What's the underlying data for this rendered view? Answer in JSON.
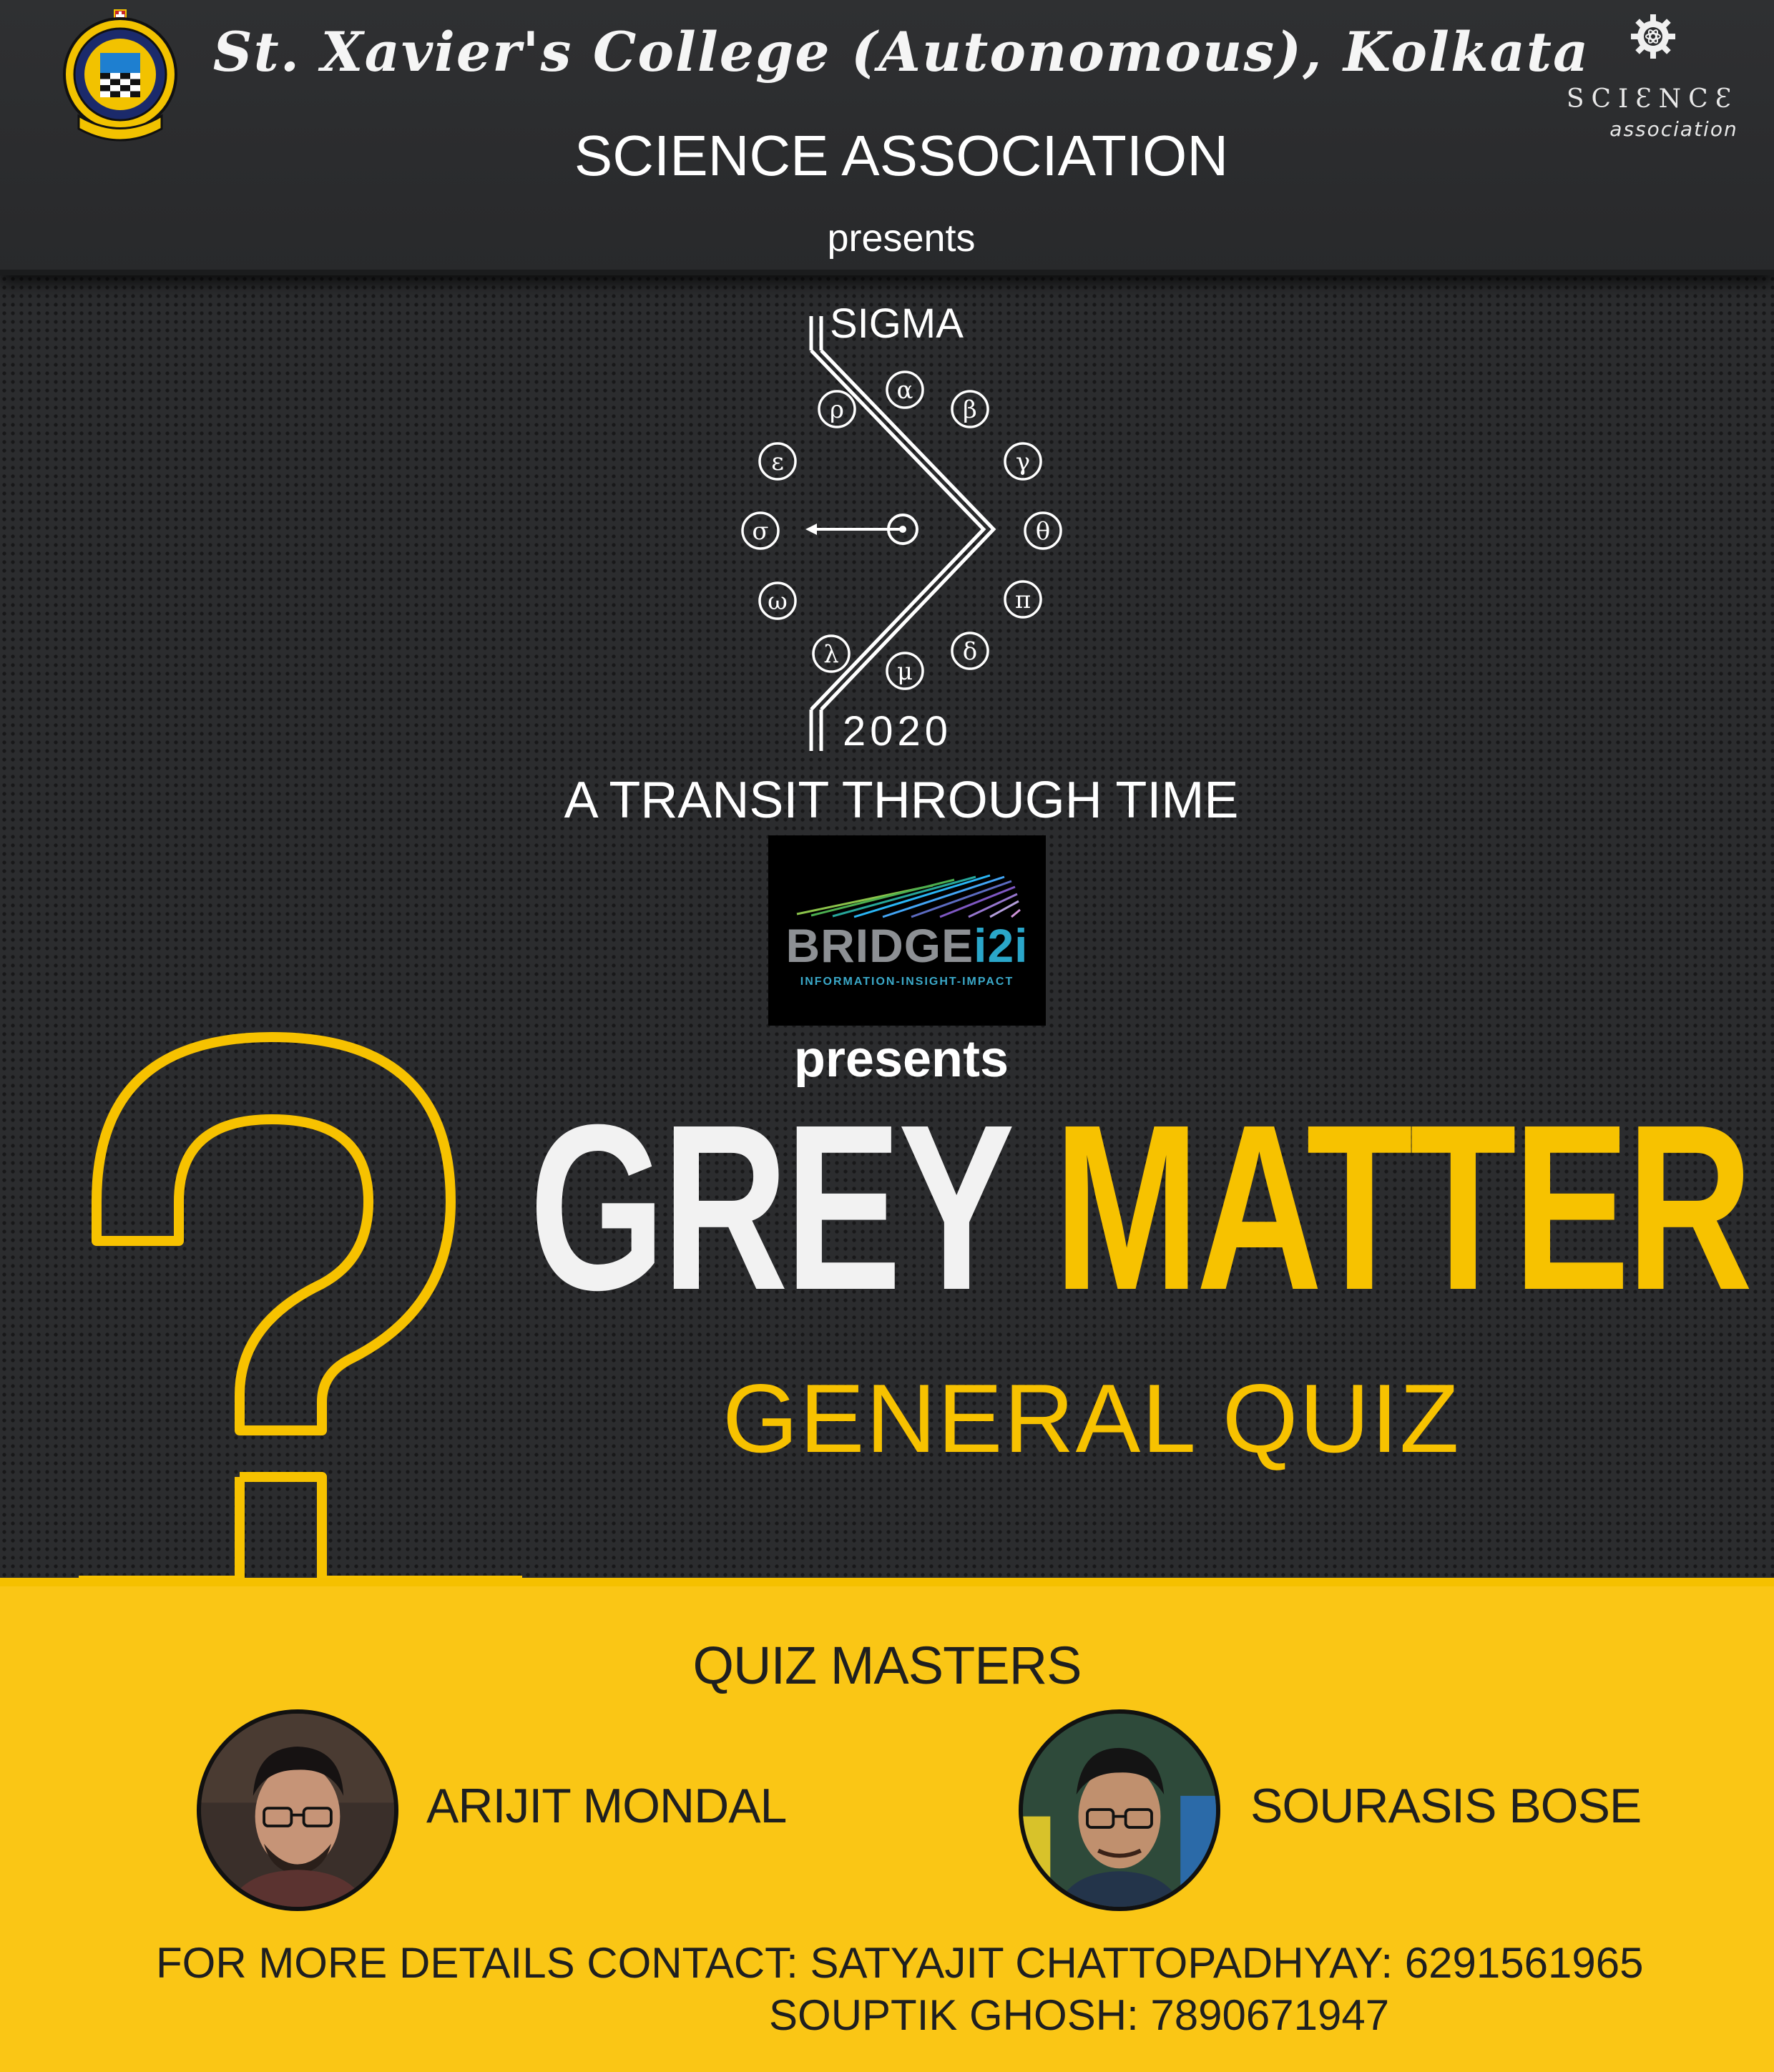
{
  "header": {
    "college_name": "St. Xavier's College (Autonomous), Kolkata",
    "association": "SCIENCE ASSOCIATION",
    "presents": "presents",
    "crest_motto": "NIHIL ULTRA",
    "crest_top_text": "ST. XAVIER'S COLLEGE",
    "crest_bottom_text": "CALCUTTA"
  },
  "science_logo": {
    "word": "SCIƐNCƐ",
    "sub": "association",
    "icon": "gear-atom-icon"
  },
  "sigma": {
    "name": "SIGMA",
    "year": "2020",
    "symbols": [
      "α",
      "β",
      "γ",
      "θ",
      "π",
      "δ",
      "μ",
      "λ",
      "ω",
      "σ",
      "ε",
      "ρ"
    ],
    "tagline": "A TRANSIT THROUGH TIME"
  },
  "sponsor": {
    "brand_main": "BRIDGE",
    "brand_suffix": "i2i",
    "tagline": "INFORMATION-INSIGHT-IMPACT",
    "presents": "presents"
  },
  "event": {
    "title_white": "GREY",
    "title_yellow": "MATTER",
    "subtitle": "GENERAL QUIZ"
  },
  "quiz_masters": {
    "heading": "QUIZ MASTERS",
    "people": [
      {
        "name": "ARIJIT MONDAL"
      },
      {
        "name": "SOURASIS BOSE"
      }
    ]
  },
  "contact": {
    "line1": "FOR MORE DETAILS CONTACT: SATYAJIT CHATTOPADHYAY: 6291561965",
    "line2": "SOUPTIK GHOSH: 7890671947"
  },
  "colors": {
    "background": "#2b2c2e",
    "accent_yellow": "#f7c200",
    "band_yellow": "#fac615",
    "text_dark": "#1f1f1f",
    "text_light": "#ffffff"
  }
}
